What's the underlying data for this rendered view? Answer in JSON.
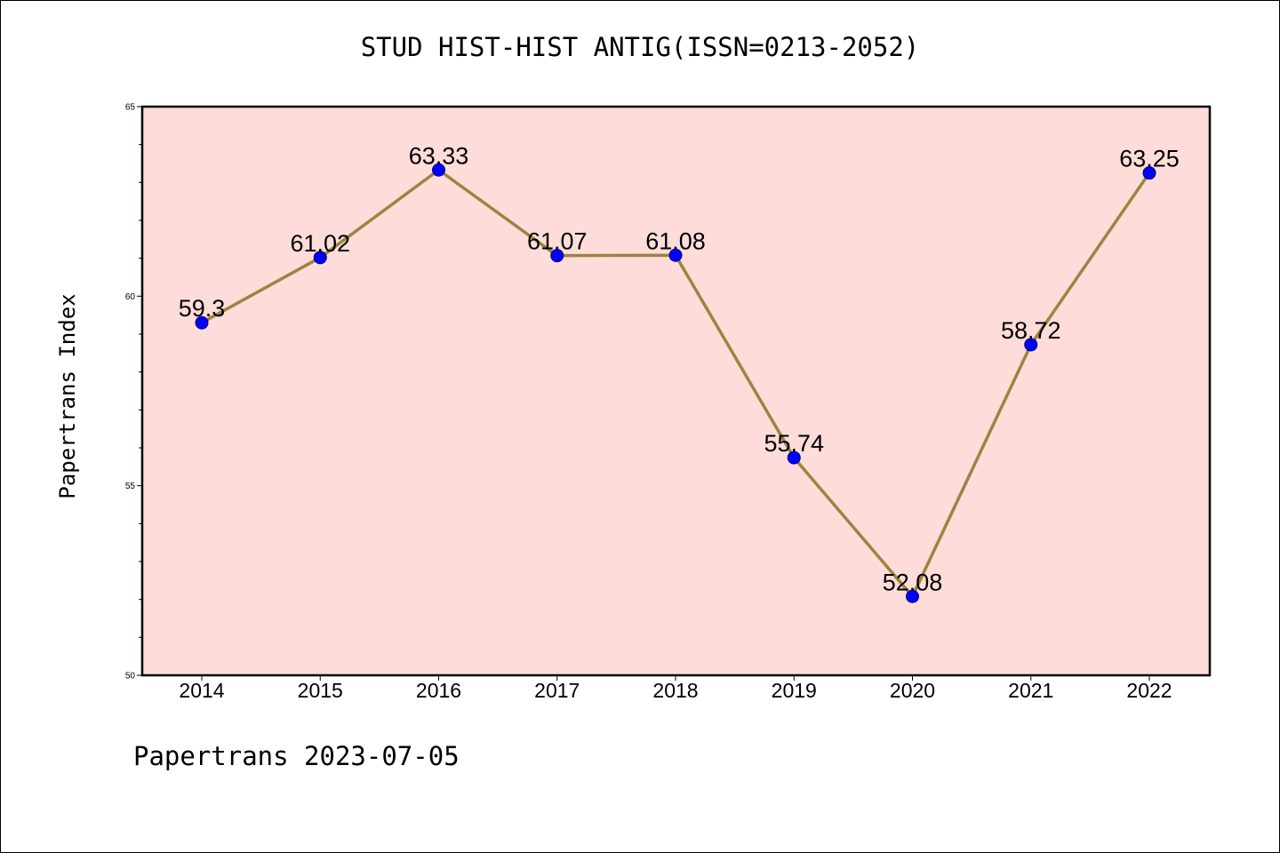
{
  "title": "STUD HIST-HIST ANTIG(ISSN=0213-2052)",
  "footer": "Papertrans 2023-07-05",
  "colors": {
    "plot_background": "#FDDCDA",
    "line": "#9B8540",
    "marker": "#0000FF",
    "marker_edge": "#00007A"
  },
  "chart_data": {
    "type": "line",
    "title": "STUD HIST-HIST ANTIG(ISSN=0213-2052)",
    "xlabel": "",
    "ylabel": "Papertrans Index",
    "categories": [
      "2014",
      "2015",
      "2016",
      "2017",
      "2018",
      "2019",
      "2020",
      "2021",
      "2022"
    ],
    "series": [
      {
        "values": [
          59.3,
          61.02,
          63.33,
          61.07,
          61.08,
          55.74,
          52.08,
          58.72,
          63.25
        ],
        "labels": [
          "59.3",
          "61.02",
          "63.33",
          "61.07",
          "61.08",
          "55.74",
          "52.08",
          "58.72",
          "63.25"
        ]
      }
    ],
    "ylim": [
      50,
      65
    ],
    "yticks": [
      "50",
      "55",
      "60",
      "65"
    ],
    "minor_ytick_step": 1,
    "grid": false,
    "legend": "none"
  }
}
